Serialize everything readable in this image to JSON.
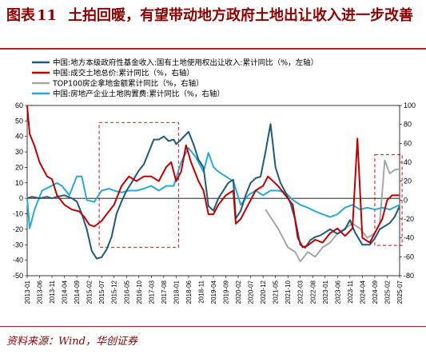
{
  "figure": {
    "label": "图表",
    "number": "11",
    "title": "土拍回暖，有望带动地方政府土地出让收入进一步改善"
  },
  "source": "资料来源：Wind，华创证券",
  "colors": {
    "dark_blue": "#1f5a7a",
    "red": "#c00000",
    "gray": "#a6a6a6",
    "light_blue": "#2aa8d8",
    "highlight_box": "#e03030",
    "title": "#8b0000"
  },
  "chart_data": {
    "type": "line",
    "x_ticks": [
      "2013-01",
      "2013-06",
      "2013-11",
      "2014-04",
      "2014-09",
      "2015-02",
      "2015-07",
      "2015-12",
      "2016-05",
      "2016-10",
      "2017-03",
      "2017-08",
      "2018-01",
      "2018-06",
      "2018-11",
      "2019-04",
      "2019-09",
      "2020-02",
      "2020-07",
      "2020-12",
      "2021-05",
      "2021-10",
      "2022-03",
      "2022-08",
      "2023-01",
      "2023-06",
      "2023-11",
      "2024-04",
      "2024-09",
      "2025-02",
      "2025-07"
    ],
    "y_left": {
      "min": -50,
      "max": 60,
      "ticks": [
        -50,
        -40,
        -30,
        -20,
        -10,
        0,
        10,
        20,
        30,
        40,
        50,
        60
      ]
    },
    "y_right": {
      "min": -80,
      "max": 100,
      "ticks": [
        -80,
        -60,
        -40,
        -20,
        0,
        20,
        40,
        60,
        80,
        100
      ]
    },
    "legend_position": "top",
    "series": [
      {
        "name": "中国:地方本级政府性基金收入:国有土地使用权出让收入:累计同比（%，左轴）",
        "axis": "left",
        "color": "#1f5a7a",
        "points": [
          [
            "2013-01",
            0
          ],
          [
            "2013-03",
            1
          ],
          [
            "2013-06",
            0
          ],
          [
            "2013-09",
            1
          ],
          [
            "2013-11",
            0
          ],
          [
            "2014-01",
            1
          ],
          [
            "2014-04",
            2
          ],
          [
            "2014-07",
            0
          ],
          [
            "2014-09",
            -2
          ],
          [
            "2014-11",
            -10
          ],
          [
            "2015-01",
            -20
          ],
          [
            "2015-03",
            -34
          ],
          [
            "2015-05",
            -39
          ],
          [
            "2015-07",
            -38
          ],
          [
            "2015-09",
            -33
          ],
          [
            "2015-11",
            -25
          ],
          [
            "2016-01",
            -10
          ],
          [
            "2016-03",
            -2
          ],
          [
            "2016-05",
            5
          ],
          [
            "2016-07",
            10
          ],
          [
            "2016-10",
            18
          ],
          [
            "2016-12",
            22
          ],
          [
            "2017-02",
            30
          ],
          [
            "2017-04",
            38
          ],
          [
            "2017-06",
            38
          ],
          [
            "2017-08",
            40
          ],
          [
            "2017-10",
            37
          ],
          [
            "2017-12",
            38
          ],
          [
            "2018-01",
            35
          ],
          [
            "2018-03",
            38
          ],
          [
            "2018-06",
            43
          ],
          [
            "2018-08",
            35
          ],
          [
            "2018-10",
            25
          ],
          [
            "2018-12",
            20
          ],
          [
            "2019-02",
            -5
          ],
          [
            "2019-04",
            -8
          ],
          [
            "2019-06",
            0
          ],
          [
            "2019-08",
            5
          ],
          [
            "2019-10",
            10
          ],
          [
            "2019-12",
            12
          ],
          [
            "2020-01",
            -13
          ],
          [
            "2020-03",
            -8
          ],
          [
            "2020-05",
            2
          ],
          [
            "2020-07",
            10
          ],
          [
            "2020-09",
            13
          ],
          [
            "2020-11",
            14
          ],
          [
            "2021-01",
            30
          ],
          [
            "2021-03",
            48
          ],
          [
            "2021-05",
            20
          ],
          [
            "2021-07",
            10
          ],
          [
            "2021-09",
            4
          ],
          [
            "2021-11",
            -3
          ],
          [
            "2022-01",
            -14
          ],
          [
            "2022-03",
            -30
          ],
          [
            "2022-05",
            -32
          ],
          [
            "2022-07",
            -27
          ],
          [
            "2022-09",
            -25
          ],
          [
            "2022-11",
            -24
          ],
          [
            "2023-01",
            -22
          ],
          [
            "2023-03",
            -20
          ],
          [
            "2023-06",
            -23
          ],
          [
            "2023-09",
            -20
          ],
          [
            "2023-11",
            -14
          ],
          [
            "2024-01",
            -22
          ],
          [
            "2024-04",
            -30
          ],
          [
            "2024-07",
            -30
          ],
          [
            "2024-09",
            -26
          ],
          [
            "2024-11",
            -20
          ],
          [
            "2025-01",
            -18
          ],
          [
            "2025-03",
            -16
          ],
          [
            "2025-05",
            -12
          ],
          [
            "2025-07",
            -5
          ]
        ]
      },
      {
        "name": "中国:成交土地总价:累计同比（%，右轴）",
        "axis": "right",
        "color": "#c00000",
        "points": [
          [
            "2013-01",
            100
          ],
          [
            "2013-02",
            70
          ],
          [
            "2013-04",
            57
          ],
          [
            "2013-06",
            40
          ],
          [
            "2013-09",
            25
          ],
          [
            "2013-11",
            22
          ],
          [
            "2014-01",
            5
          ],
          [
            "2014-04",
            -5
          ],
          [
            "2014-07",
            -10
          ],
          [
            "2014-10",
            -12
          ],
          [
            "2014-12",
            -18
          ],
          [
            "2015-02",
            -26
          ],
          [
            "2015-04",
            -28
          ],
          [
            "2015-07",
            -22
          ],
          [
            "2015-09",
            -15
          ],
          [
            "2015-12",
            -5
          ],
          [
            "2016-03",
            15
          ],
          [
            "2016-06",
            25
          ],
          [
            "2016-09",
            20
          ],
          [
            "2016-12",
            25
          ],
          [
            "2017-03",
            25
          ],
          [
            "2017-06",
            20
          ],
          [
            "2017-09",
            35
          ],
          [
            "2017-11",
            40
          ],
          [
            "2018-01",
            20
          ],
          [
            "2018-03",
            30
          ],
          [
            "2018-05",
            58
          ],
          [
            "2018-07",
            40
          ],
          [
            "2018-10",
            20
          ],
          [
            "2018-12",
            10
          ],
          [
            "2019-02",
            -15
          ],
          [
            "2019-04",
            -15
          ],
          [
            "2019-06",
            -5
          ],
          [
            "2019-09",
            5
          ],
          [
            "2019-12",
            10
          ],
          [
            "2020-01",
            -25
          ],
          [
            "2020-03",
            -20
          ],
          [
            "2020-06",
            -5
          ],
          [
            "2020-09",
            10
          ],
          [
            "2020-12",
            15
          ],
          [
            "2021-02",
            25
          ],
          [
            "2021-04",
            20
          ],
          [
            "2021-06",
            15
          ],
          [
            "2021-09",
            5
          ],
          [
            "2021-12",
            -5
          ],
          [
            "2022-02",
            -40
          ],
          [
            "2022-04",
            -50
          ],
          [
            "2022-06",
            -48
          ],
          [
            "2022-09",
            -42
          ],
          [
            "2022-12",
            -45
          ],
          [
            "2023-03",
            -35
          ],
          [
            "2023-06",
            -30
          ],
          [
            "2023-09",
            -38
          ],
          [
            "2023-12",
            -30
          ],
          [
            "2024-02",
            65
          ],
          [
            "2024-04",
            -40
          ],
          [
            "2024-07",
            -45
          ],
          [
            "2024-10",
            -30
          ],
          [
            "2024-12",
            -20
          ],
          [
            "2025-02",
            0
          ],
          [
            "2025-04",
            5
          ],
          [
            "2025-07",
            5
          ]
        ]
      },
      {
        "name": "TOP100房企拿地金额累计同比（%，右轴）",
        "axis": "right",
        "color": "#a6a6a6",
        "points": [
          [
            "2021-01",
            -10
          ],
          [
            "2021-06",
            -30
          ],
          [
            "2021-10",
            -50
          ],
          [
            "2022-01",
            -55
          ],
          [
            "2022-03",
            -65
          ],
          [
            "2022-06",
            -55
          ],
          [
            "2022-09",
            -60
          ],
          [
            "2022-12",
            -50
          ],
          [
            "2023-03",
            -45
          ],
          [
            "2023-06",
            -35
          ],
          [
            "2023-09",
            -30
          ],
          [
            "2023-12",
            -25
          ],
          [
            "2024-03",
            -30
          ],
          [
            "2024-06",
            -40
          ],
          [
            "2024-09",
            -35
          ],
          [
            "2024-11",
            -25
          ],
          [
            "2025-01",
            42
          ],
          [
            "2025-03",
            28
          ],
          [
            "2025-05",
            32
          ],
          [
            "2025-07",
            33
          ]
        ]
      },
      {
        "name": "中国:房地产企业土地购置费:累计同比（%，右轴）",
        "axis": "right",
        "color": "#2aa8d8",
        "points": [
          [
            "2013-01",
            2
          ],
          [
            "2013-02",
            -30
          ],
          [
            "2013-04",
            -10
          ],
          [
            "2013-07",
            10
          ],
          [
            "2013-10",
            14
          ],
          [
            "2014-01",
            18
          ],
          [
            "2014-03",
            15
          ],
          [
            "2014-06",
            5
          ],
          [
            "2014-09",
            25
          ],
          [
            "2014-11",
            25
          ],
          [
            "2015-01",
            0
          ],
          [
            "2015-04",
            -2
          ],
          [
            "2015-07",
            10
          ],
          [
            "2015-10",
            12
          ],
          [
            "2015-12",
            10
          ],
          [
            "2016-03",
            8
          ],
          [
            "2016-06",
            10
          ],
          [
            "2016-09",
            10
          ],
          [
            "2016-12",
            12
          ],
          [
            "2017-03",
            15
          ],
          [
            "2017-06",
            10
          ],
          [
            "2017-09",
            15
          ],
          [
            "2017-12",
            15
          ],
          [
            "2018-03",
            40
          ],
          [
            "2018-06",
            55
          ],
          [
            "2018-09",
            45
          ],
          [
            "2018-12",
            30
          ],
          [
            "2019-02",
            50
          ],
          [
            "2019-04",
            35
          ],
          [
            "2019-06",
            30
          ],
          [
            "2019-09",
            25
          ],
          [
            "2019-12",
            20
          ],
          [
            "2020-03",
            -5
          ],
          [
            "2020-06",
            5
          ],
          [
            "2020-09",
            10
          ],
          [
            "2020-12",
            5
          ],
          [
            "2021-03",
            10
          ],
          [
            "2021-06",
            10
          ],
          [
            "2021-09",
            8
          ],
          [
            "2021-12",
            0
          ],
          [
            "2022-03",
            -5
          ],
          [
            "2022-06",
            -8
          ],
          [
            "2022-09",
            -12
          ],
          [
            "2022-12",
            -15
          ],
          [
            "2023-03",
            -18
          ],
          [
            "2023-06",
            -15
          ],
          [
            "2023-09",
            -8
          ],
          [
            "2023-12",
            -5
          ],
          [
            "2024-03",
            -10
          ],
          [
            "2024-06",
            -8
          ],
          [
            "2024-09",
            -10
          ],
          [
            "2024-12",
            -8
          ],
          [
            "2025-03",
            -10
          ],
          [
            "2025-07",
            -5
          ]
        ]
      }
    ],
    "highlight_boxes": [
      {
        "x_start": "2015-06",
        "x_end": "2018-02",
        "y_min": -50,
        "y_max": 82,
        "axis": "right"
      },
      {
        "x_start": "2024-09",
        "x_end": "2025-08",
        "y_min": -48,
        "y_max": 48,
        "axis": "right"
      }
    ]
  }
}
